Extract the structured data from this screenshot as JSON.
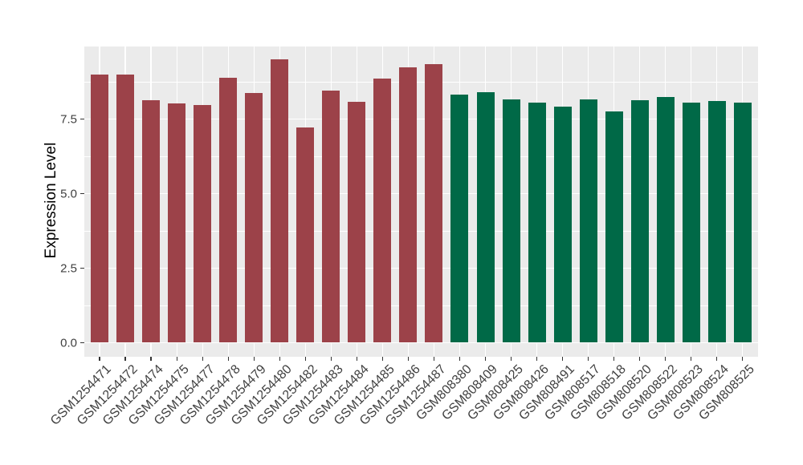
{
  "chart_data": {
    "type": "bar",
    "title": "",
    "xlabel": "",
    "ylabel": "Expression Level",
    "categories": [
      "GSM1254471",
      "GSM1254472",
      "GSM1254474",
      "GSM1254475",
      "GSM1254477",
      "GSM1254478",
      "GSM1254479",
      "GSM1254480",
      "GSM1254482",
      "GSM1254483",
      "GSM1254484",
      "GSM1254485",
      "GSM1254486",
      "GSM1254487",
      "GSM808380",
      "GSM808409",
      "GSM808425",
      "GSM808426",
      "GSM808491",
      "GSM808517",
      "GSM808518",
      "GSM808520",
      "GSM808522",
      "GSM808523",
      "GSM808524",
      "GSM808525"
    ],
    "values": [
      8.98,
      8.98,
      8.12,
      8.03,
      7.97,
      8.88,
      8.38,
      9.5,
      7.22,
      8.46,
      8.09,
      8.86,
      9.23,
      9.35,
      8.33,
      8.4,
      8.16,
      8.05,
      7.92,
      8.16,
      7.76,
      8.13,
      8.23,
      8.06,
      8.11,
      8.04
    ],
    "bar_group_index": [
      0,
      0,
      0,
      0,
      0,
      0,
      0,
      0,
      0,
      0,
      0,
      0,
      0,
      0,
      1,
      1,
      1,
      1,
      1,
      1,
      1,
      1,
      1,
      1,
      1,
      1
    ],
    "group_colors": [
      "#9C4249",
      "#006947"
    ],
    "ytick_labels": [
      "0.0",
      "2.5",
      "5.0",
      "7.5"
    ],
    "ytick_values": [
      0,
      2.5,
      5.0,
      7.5
    ],
    "ygrid_major": [
      0,
      2.5,
      5.0,
      7.5,
      10
    ],
    "ygrid_minor": [
      1.25,
      3.75,
      6.25,
      8.75
    ],
    "ylim": [
      0,
      10
    ],
    "grid": true,
    "legend": "none",
    "panel_bg": "#EBEBEB",
    "grid_color": "#FFFFFF",
    "background": "#FFFFFF"
  }
}
